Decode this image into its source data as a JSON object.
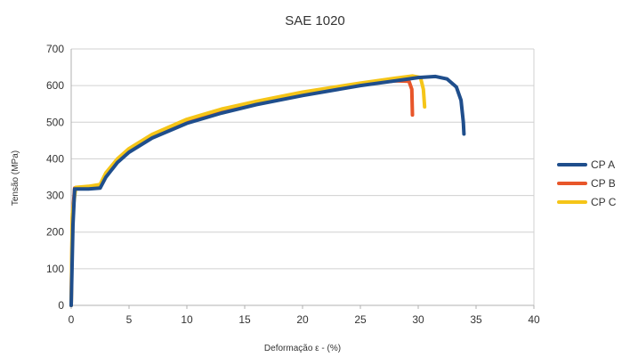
{
  "chart_data": {
    "type": "line",
    "title": "SAE 1020",
    "xlabel": "Deformação ε - (%)",
    "ylabel": "Tensão (MPa)",
    "xlim": [
      0,
      40
    ],
    "ylim": [
      0,
      700
    ],
    "x_ticks": [
      "0",
      "5",
      "10",
      "15",
      "20",
      "25",
      "30",
      "35",
      "40"
    ],
    "y_ticks": [
      "0",
      "100",
      "200",
      "300",
      "400",
      "500",
      "600",
      "700"
    ],
    "grid": "horizontal",
    "legend_position": "right",
    "series": [
      {
        "name": "CP A",
        "color": "#1f4e8c",
        "points": [
          [
            0,
            0
          ],
          [
            0.15,
            220
          ],
          [
            0.3,
            318
          ],
          [
            1.5,
            318
          ],
          [
            2.5,
            320
          ],
          [
            3,
            350
          ],
          [
            4,
            390
          ],
          [
            5,
            418
          ],
          [
            7,
            457
          ],
          [
            10,
            497
          ],
          [
            13,
            525
          ],
          [
            16,
            548
          ],
          [
            20,
            573
          ],
          [
            25,
            600
          ],
          [
            28,
            613
          ],
          [
            30,
            622
          ],
          [
            31.5,
            625
          ],
          [
            32.5,
            618
          ],
          [
            33.3,
            596
          ],
          [
            33.7,
            560
          ],
          [
            33.9,
            500
          ],
          [
            33.95,
            468
          ]
        ]
      },
      {
        "name": "CP B",
        "color": "#e8562a",
        "points": [
          [
            0,
            0
          ],
          [
            0.1,
            240
          ],
          [
            0.3,
            320
          ],
          [
            1.5,
            322
          ],
          [
            2.5,
            325
          ],
          [
            3,
            355
          ],
          [
            4,
            395
          ],
          [
            5,
            423
          ],
          [
            7,
            462
          ],
          [
            10,
            503
          ],
          [
            13,
            531
          ],
          [
            16,
            553
          ],
          [
            20,
            578
          ],
          [
            25,
            603
          ],
          [
            28,
            613
          ],
          [
            29.2,
            612
          ],
          [
            29.45,
            590
          ],
          [
            29.5,
            520
          ]
        ]
      },
      {
        "name": "CP C",
        "color": "#f5c518",
        "points": [
          [
            0,
            0
          ],
          [
            0.1,
            250
          ],
          [
            0.4,
            322
          ],
          [
            1.5,
            325
          ],
          [
            2.5,
            330
          ],
          [
            3,
            362
          ],
          [
            4,
            400
          ],
          [
            5,
            428
          ],
          [
            7,
            467
          ],
          [
            10,
            508
          ],
          [
            13,
            536
          ],
          [
            16,
            557
          ],
          [
            20,
            582
          ],
          [
            25,
            607
          ],
          [
            28,
            620
          ],
          [
            29.5,
            626
          ],
          [
            30.2,
            622
          ],
          [
            30.45,
            590
          ],
          [
            30.55,
            542
          ]
        ]
      }
    ]
  }
}
